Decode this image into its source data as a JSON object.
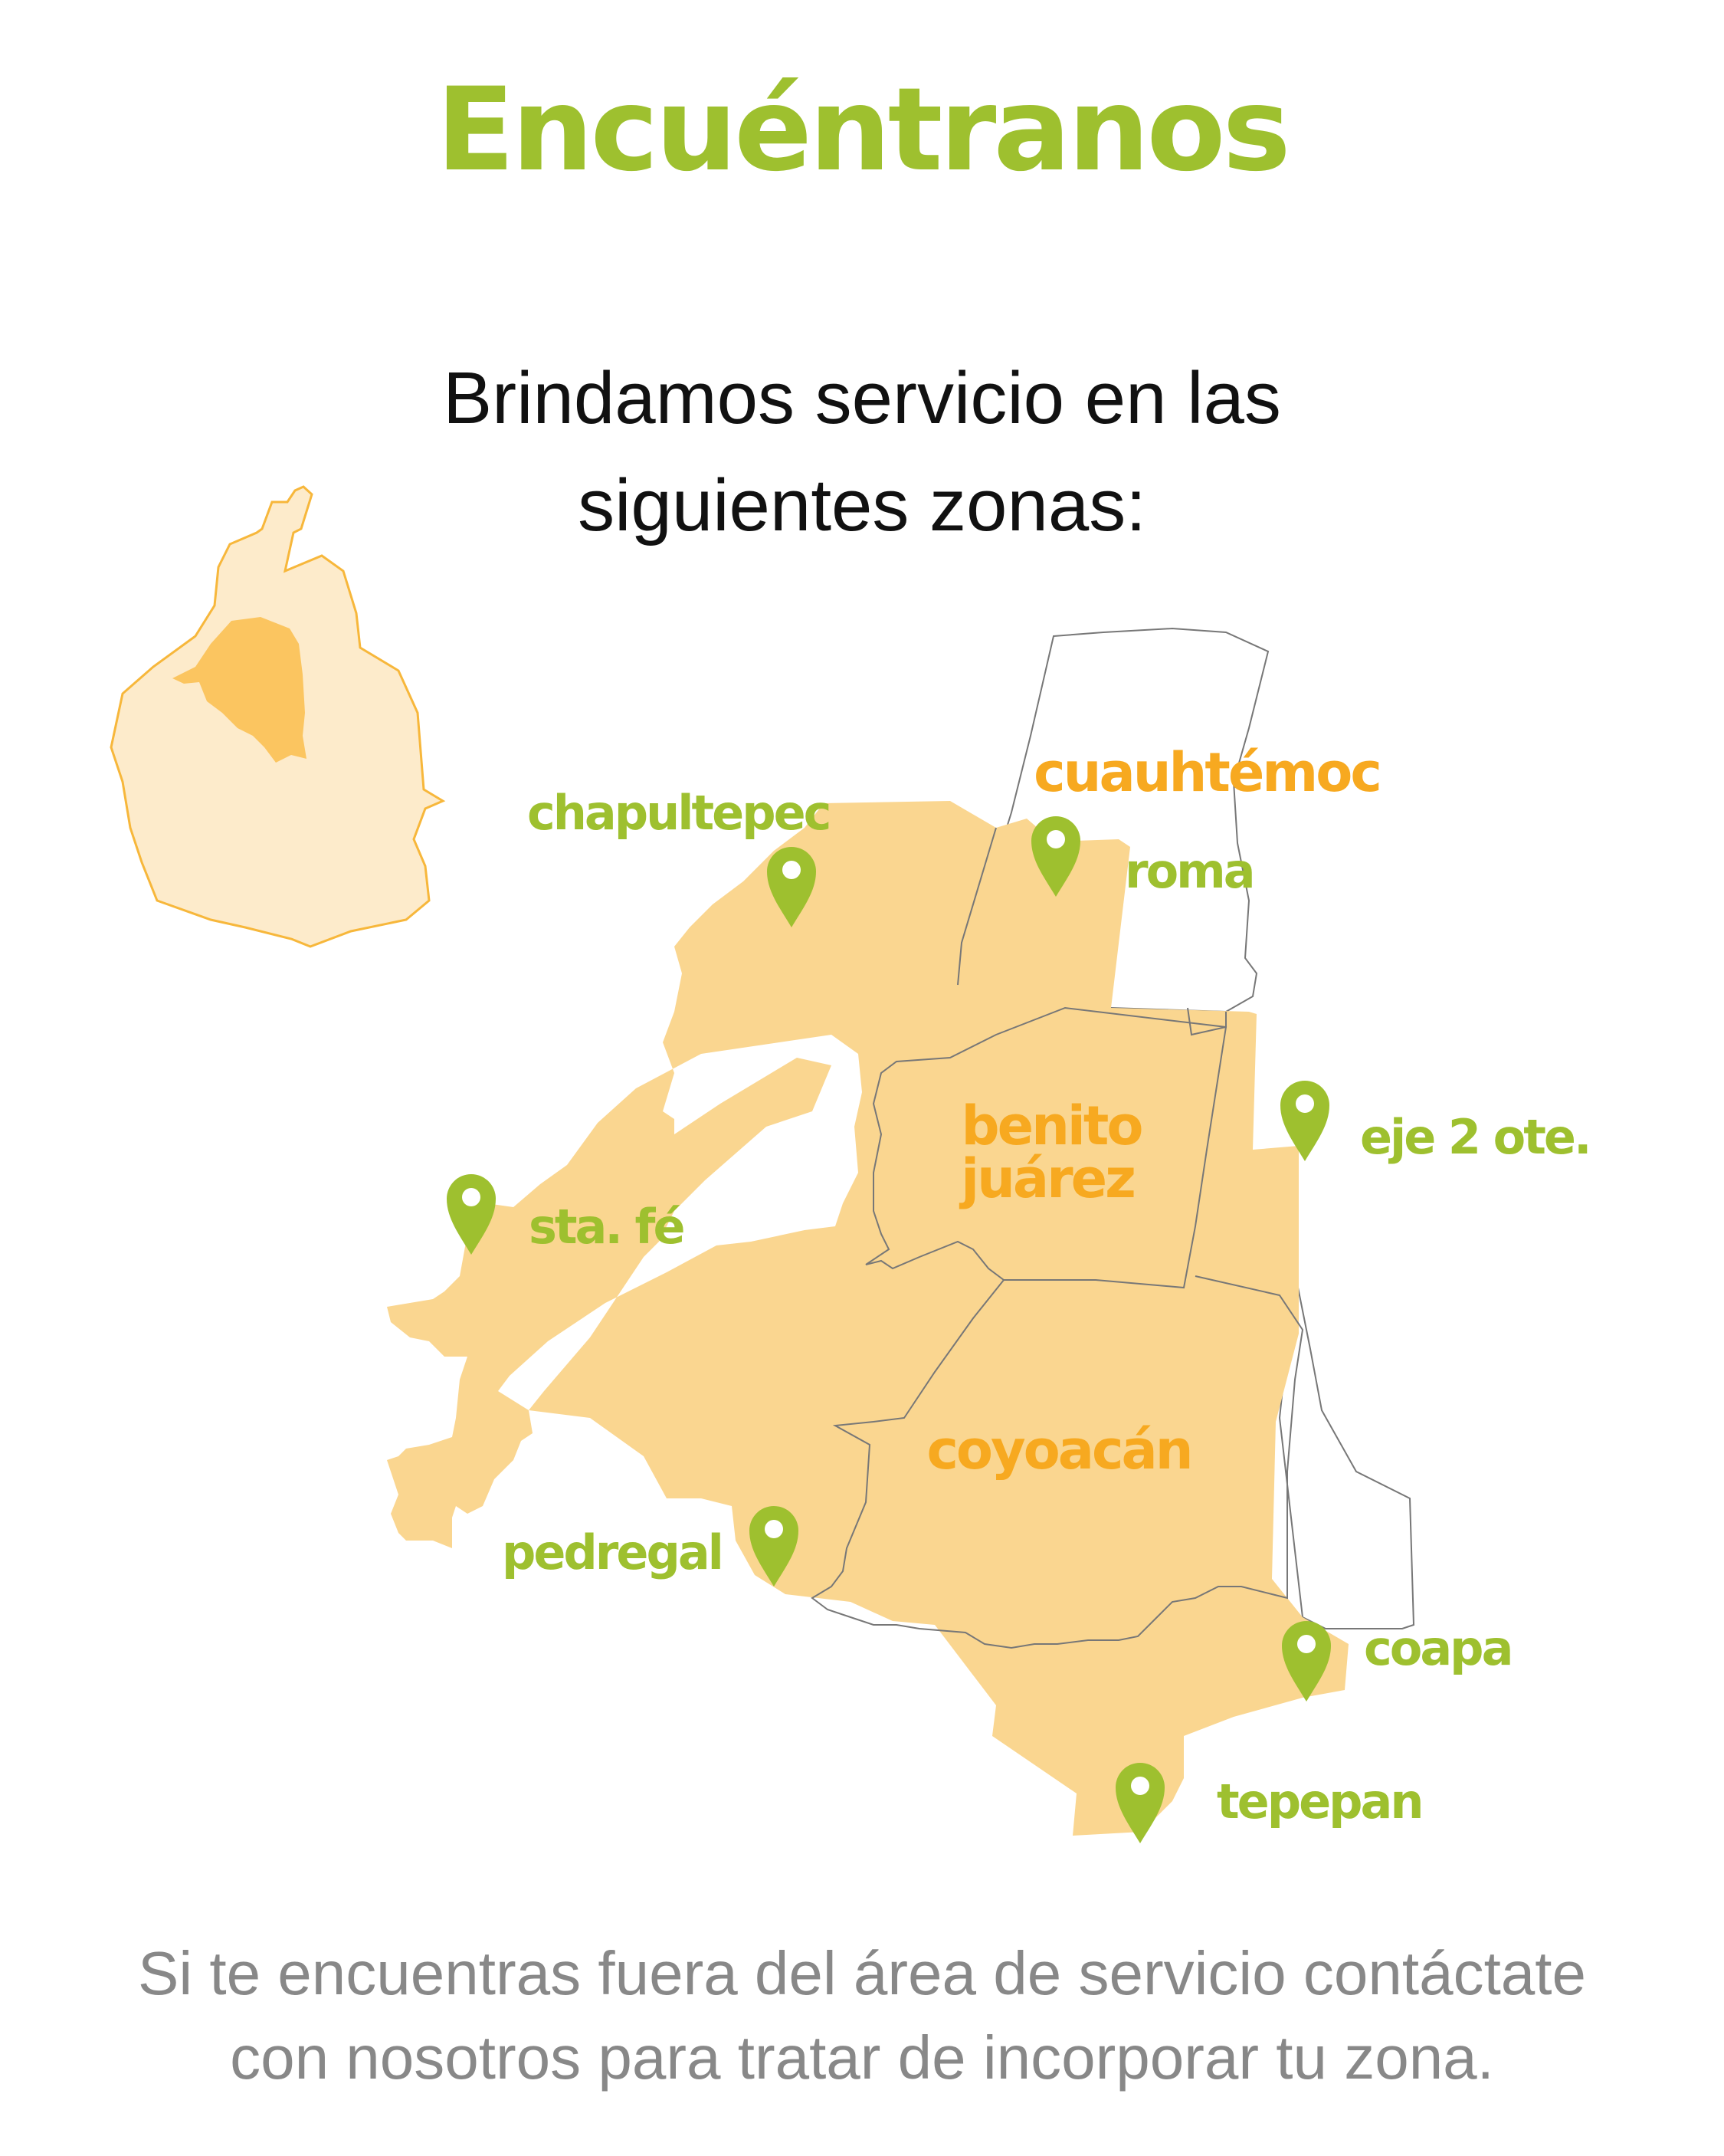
{
  "title": "Encuéntranos",
  "subtitle": {
    "line1": "Brindamos servicio en las",
    "line2": "siguientes zonas:"
  },
  "colors": {
    "green": "#9ec02f",
    "orange": "#f7a920",
    "zone_fill": "#fad690",
    "city_fill": "#fdebcb",
    "city_highlight": "#fbc560",
    "city_outline": "#f7b73b",
    "border_gray": "#777777",
    "footer_gray": "#888888"
  },
  "districts": {
    "cuauhtemoc": "cuauhtémoc",
    "benito_juarez_line1": "benito",
    "benito_juarez_line2": "juárez",
    "coyoacan": "coyoacán"
  },
  "places": {
    "chapultepec": "chapultepec",
    "roma": "roma",
    "eje2": "eje 2 ote.",
    "sta_fe": "sta. fé",
    "pedregal": "pedregal",
    "coapa": "coapa",
    "tepepan": "tepepan"
  },
  "footer": {
    "line1": "Si te encuentras fuera del área de servicio contáctate",
    "line2": "con nosotros para tratar de incorporar tu zona."
  }
}
